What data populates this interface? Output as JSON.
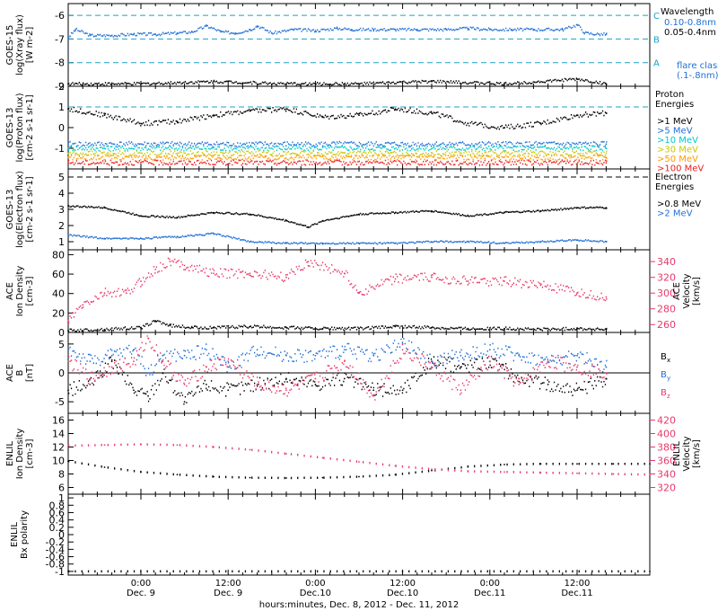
{
  "chart_data": {
    "type": "line",
    "xlabel": "hours:minutes, Dec.  8, 2012 - Dec. 11, 2012",
    "x_ticks": [
      {
        "time": "0:00",
        "date": "Dec. 9",
        "hours": 10
      },
      {
        "time": "12:00",
        "date": "Dec. 9",
        "hours": 22
      },
      {
        "time": "0:00",
        "date": "Dec.10",
        "hours": 34
      },
      {
        "time": "12:00",
        "date": "Dec.10",
        "hours": 46
      },
      {
        "time": "0:00",
        "date": "Dec.11",
        "hours": 58
      },
      {
        "time": "12:00",
        "date": "Dec.11",
        "hours": 70
      }
    ],
    "xlim_hours": [
      0,
      80
    ],
    "panels": [
      {
        "id": "goes15",
        "ylabel_lines": [
          "GOES-15",
          "log(Xray flux)",
          "[W m-2]"
        ],
        "ylim": [
          -9,
          -5.5
        ],
        "yticks": [
          -9,
          -8,
          -7,
          -6
        ],
        "ref_lines": [
          {
            "y": -6,
            "label": "C"
          },
          {
            "y": -7,
            "label": "B"
          },
          {
            "y": -8,
            "label": "A"
          }
        ],
        "legend_title": "Wavelength",
        "series": [
          {
            "name": "0.10-0.8nm",
            "color": "#1f6fd6",
            "x": [
              0,
              1,
              3,
              6,
              9,
              12,
              15,
              17,
              19,
              21,
              23,
              25,
              26,
              28,
              31,
              34,
              37,
              39,
              42,
              45,
              48,
              52,
              55,
              58,
              61,
              64,
              68,
              70,
              71,
              73,
              74
            ],
            "y": [
              -6.9,
              -6.6,
              -6.85,
              -6.85,
              -6.8,
              -6.8,
              -6.75,
              -6.7,
              -6.45,
              -6.7,
              -6.75,
              -6.6,
              -6.45,
              -6.75,
              -6.6,
              -6.65,
              -6.55,
              -6.6,
              -6.6,
              -6.6,
              -6.6,
              -6.6,
              -6.55,
              -6.6,
              -6.6,
              -6.6,
              -6.6,
              -6.4,
              -6.75,
              -6.8,
              -6.8
            ]
          },
          {
            "name": "0.05-0.4nm",
            "color": "#000000",
            "x": [
              0,
              10,
              20,
              30,
              40,
              50,
              60,
              70,
              74
            ],
            "y": [
              -8.9,
              -8.9,
              -8.8,
              -8.9,
              -8.9,
              -8.8,
              -8.9,
              -8.7,
              -8.9
            ]
          }
        ],
        "annotation": [
          "flare class",
          "(.1-.8nm)"
        ]
      },
      {
        "id": "goes13p",
        "ylabel_lines": [
          "GOES-13",
          "log(Proton flux)",
          "[cm-2 s-1 sr-1]"
        ],
        "ylim": [
          -2,
          2
        ],
        "yticks": [
          -1,
          0,
          1,
          2
        ],
        "ref_lines": [
          {
            "y": 1,
            "label": ""
          }
        ],
        "legend_title": [
          "Proton",
          "Energies"
        ],
        "series": [
          {
            "name": ">1 MeV",
            "color": "#000000",
            "x": [
              0,
              5,
              10,
              15,
              20,
              25,
              30,
              35,
              40,
              45,
              50,
              55,
              60,
              65,
              70,
              74
            ],
            "y": [
              0.9,
              0.6,
              0.2,
              0.3,
              0.6,
              0.8,
              0.9,
              0.5,
              0.6,
              0.9,
              0.7,
              0.2,
              0.0,
              0.2,
              0.6,
              0.7
            ]
          },
          {
            "name": ">5 MeV",
            "color": "#1f6fd6",
            "x": [
              0,
              74
            ],
            "y": [
              -0.8,
              -0.8
            ]
          },
          {
            "name": ">10 MeV",
            "color": "#00c8c8",
            "x": [
              0,
              74
            ],
            "y": [
              -1.0,
              -1.0
            ]
          },
          {
            "name": ">30 MeV",
            "color": "#c8c800",
            "x": [
              0,
              74
            ],
            "y": [
              -1.25,
              -1.25
            ]
          },
          {
            "name": ">50 MeV",
            "color": "#ff9a00",
            "x": [
              0,
              74
            ],
            "y": [
              -1.45,
              -1.45
            ]
          },
          {
            "name": ">100 MeV",
            "color": "#e82020",
            "x": [
              0,
              74
            ],
            "y": [
              -1.7,
              -1.7
            ]
          }
        ]
      },
      {
        "id": "goes13e",
        "ylabel_lines": [
          "GOES-13",
          "log(Electron flux)",
          "[cm-2 s-1 sr-1]"
        ],
        "ylim": [
          0.5,
          5.5
        ],
        "yticks": [
          1,
          2,
          3,
          4,
          5
        ],
        "ref_lines": [
          {
            "y": 5,
            "label": ""
          }
        ],
        "legend_title": [
          "Electron",
          "Energies"
        ],
        "series": [
          {
            "name": ">0.8 MeV",
            "color": "#000000",
            "x": [
              0,
              5,
              10,
              15,
              20,
              25,
              30,
              33,
              35,
              40,
              45,
              50,
              55,
              60,
              65,
              70,
              74
            ],
            "y": [
              3.2,
              3.1,
              2.6,
              2.5,
              2.8,
              2.7,
              2.3,
              1.9,
              2.3,
              2.7,
              2.8,
              2.9,
              2.6,
              2.8,
              2.9,
              3.1,
              3.1
            ]
          },
          {
            "name": ">2 MeV",
            "color": "#1f6fd6",
            "x": [
              0,
              5,
              10,
              15,
              20,
              25,
              30,
              35,
              40,
              45,
              50,
              55,
              60,
              65,
              70,
              74
            ],
            "y": [
              1.4,
              1.2,
              1.2,
              1.3,
              1.5,
              1.0,
              0.9,
              0.9,
              0.9,
              0.9,
              1.0,
              1.0,
              0.9,
              1.0,
              1.1,
              1.0
            ]
          }
        ]
      },
      {
        "id": "ace_den",
        "ylabel_lines": [
          "ACE",
          "Ion Density",
          "[cm-3]"
        ],
        "ylim": [
          0,
          85
        ],
        "yticks": [
          0,
          20,
          40,
          60,
          80
        ],
        "y2label_lines": [
          "ACE",
          "Velocity",
          "[km/s]"
        ],
        "y2lim": [
          250,
          355
        ],
        "y2ticks": [
          260,
          280,
          300,
          320,
          340
        ],
        "series": [
          {
            "name": "Density",
            "color": "#000000",
            "axis": "left",
            "x": [
              0,
              5,
              10,
              12,
              14,
              17,
              20,
              25,
              30,
              35,
              40,
              45,
              50,
              55,
              60,
              65,
              70,
              74
            ],
            "y": [
              2,
              3,
              5,
              12,
              7,
              5,
              5,
              6,
              5,
              4,
              4,
              6,
              5,
              4,
              4,
              3,
              4,
              3
            ]
          },
          {
            "name": "Velocity",
            "color": "#e8396a",
            "axis": "right",
            "x": [
              0,
              2,
              5,
              8,
              10,
              12,
              14,
              16,
              20,
              25,
              30,
              33,
              38,
              40,
              45,
              50,
              55,
              60,
              65,
              70,
              74
            ],
            "y": [
              265,
              285,
              300,
              300,
              315,
              330,
              340,
              335,
              325,
              325,
              320,
              340,
              325,
              300,
              318,
              320,
              315,
              315,
              310,
              300,
              295
            ]
          }
        ]
      },
      {
        "id": "ace_b",
        "ylabel_lines": [
          "ACE",
          "B",
          "[nT]"
        ],
        "ylim": [
          -7,
          7
        ],
        "yticks": [
          -5,
          0,
          5
        ],
        "series": [
          {
            "name": "Bx",
            "color": "#000000",
            "x": [
              0,
              3,
              6,
              9,
              11,
              13,
              16,
              19,
              22,
              26,
              30,
              34,
              38,
              42,
              46,
              50,
              54,
              58,
              62,
              66,
              70,
              74
            ],
            "y": [
              -3,
              -2,
              2,
              -3,
              -4,
              0,
              -5,
              -2,
              -3,
              -2,
              -1,
              -2,
              -1,
              -3,
              -3,
              2,
              1,
              2,
              -1,
              -2,
              -3,
              -1
            ]
          },
          {
            "name": "By",
            "color": "#1f6fd6",
            "x": [
              0,
              3,
              6,
              9,
              11,
              13,
              16,
              19,
              22,
              26,
              30,
              34,
              38,
              42,
              46,
              50,
              54,
              58,
              62,
              66,
              70,
              74
            ],
            "y": [
              4,
              2,
              3,
              4,
              0,
              3,
              3,
              4,
              1,
              4,
              3,
              3,
              4,
              3,
              5,
              2,
              3,
              4,
              3,
              2,
              3,
              1
            ]
          },
          {
            "name": "Bz",
            "color": "#e8396a",
            "x": [
              0,
              3,
              6,
              9,
              11,
              13,
              16,
              19,
              22,
              26,
              30,
              34,
              38,
              42,
              46,
              50,
              54,
              58,
              62,
              66,
              70,
              74
            ],
            "y": [
              2,
              -1,
              1,
              2,
              6,
              2,
              -2,
              1,
              2,
              -2,
              -3,
              -1,
              2,
              -4,
              4,
              1,
              -3,
              2,
              -2,
              2,
              1,
              0
            ]
          }
        ]
      },
      {
        "id": "enlil_den",
        "ylabel_lines": [
          "ENLIL",
          "Ion Density",
          "[cm-3]"
        ],
        "ylim": [
          5,
          17
        ],
        "yticks": [
          6,
          8,
          10,
          12,
          14,
          16
        ],
        "y2label_lines": [
          "ENLIL",
          "Velocity",
          "[km/s]"
        ],
        "y2lim": [
          310,
          430
        ],
        "y2ticks": [
          320,
          340,
          360,
          380,
          400,
          420
        ],
        "series": [
          {
            "name": "Density",
            "color": "#000000",
            "axis": "left",
            "x": [
              0,
              5,
              10,
              15,
              20,
              25,
              30,
              35,
              40,
              45,
              50,
              55,
              60,
              65,
              70,
              75,
              80
            ],
            "y": [
              9.9,
              9.0,
              8.3,
              7.9,
              7.6,
              7.45,
              7.4,
              7.45,
              7.6,
              7.9,
              8.5,
              9.1,
              9.4,
              9.5,
              9.5,
              9.5,
              9.5
            ]
          },
          {
            "name": "Velocity",
            "color": "#e8396a",
            "axis": "right",
            "x": [
              0,
              5,
              10,
              15,
              20,
              25,
              30,
              35,
              40,
              45,
              50,
              55,
              60,
              65,
              70,
              75,
              80
            ],
            "y": [
              382,
              383,
              384,
              383,
              380,
              376,
              370,
              364,
              358,
              352,
              347,
              344,
              343,
              342,
              341,
              340,
              339
            ]
          }
        ]
      },
      {
        "id": "enlil_bx",
        "ylabel_lines": [
          "ENLIL",
          "Bx polarity"
        ],
        "ylim": [
          -1.1,
          1.1
        ],
        "yticks": [
          -1.0,
          -0.8,
          -0.6,
          -0.4,
          -0.2,
          0.0,
          0.2,
          0.4,
          0.6,
          0.8,
          1.0
        ],
        "series": [
          {
            "name": "Bx polarity",
            "color": "#000000",
            "x": [
              0,
              80
            ],
            "y": [
              -1,
              -1
            ]
          }
        ]
      }
    ]
  }
}
